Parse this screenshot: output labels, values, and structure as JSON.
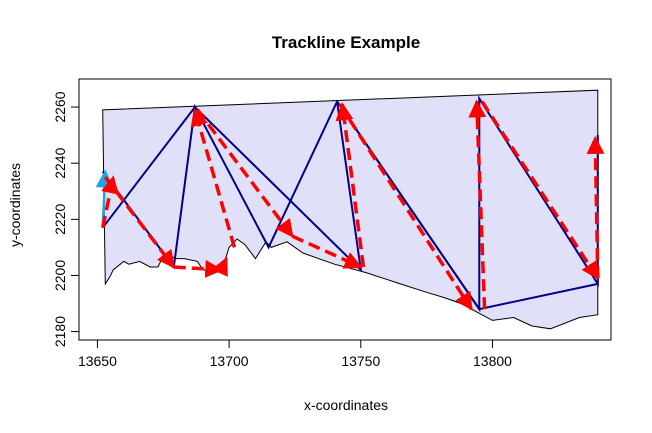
{
  "chart_data": {
    "type": "line",
    "title": "Trackline Example",
    "xlabel": "x-coordinates",
    "ylabel": "y-coordinates",
    "xlim": [
      13643,
      13845
    ],
    "ylim": [
      2177,
      2270
    ],
    "x_ticks": [
      13650,
      13700,
      13750,
      13800
    ],
    "y_ticks": [
      2180,
      2200,
      2220,
      2240,
      2260
    ],
    "grid": false,
    "legend": "none",
    "colors": {
      "polygon_fill": "#e0e0f8",
      "polygon_stroke": "#000000",
      "trackline": "#00008b",
      "arrows": "#ff0000",
      "start_arrow": "#1ea7e6"
    },
    "series": [
      {
        "name": "survey polygon",
        "points": [
          [
            13652,
            2259
          ],
          [
            13840,
            2266
          ],
          [
            13840,
            2186
          ],
          [
            13833,
            2185
          ],
          [
            13822,
            2181
          ],
          [
            13815,
            2182
          ],
          [
            13808,
            2185
          ],
          [
            13800,
            2184
          ],
          [
            13794,
            2187
          ],
          [
            13788,
            2190
          ],
          [
            13782,
            2192
          ],
          [
            13775,
            2194
          ],
          [
            13765,
            2197
          ],
          [
            13752,
            2201
          ],
          [
            13740,
            2204
          ],
          [
            13728,
            2208
          ],
          [
            13722,
            2212
          ],
          [
            13716,
            2210
          ],
          [
            13714,
            2212
          ],
          [
            13712,
            2209
          ],
          [
            13710,
            2206
          ],
          [
            13706,
            2211
          ],
          [
            13703,
            2213
          ],
          [
            13700,
            2210
          ],
          [
            13697,
            2201
          ],
          [
            13690,
            2202
          ],
          [
            13688,
            2205
          ],
          [
            13683,
            2206
          ],
          [
            13680,
            2206
          ],
          [
            13677,
            2207
          ],
          [
            13675,
            2207
          ],
          [
            13673,
            2203
          ],
          [
            13670,
            2203
          ],
          [
            13666,
            2205
          ],
          [
            13662,
            2204
          ],
          [
            13660,
            2205
          ],
          [
            13656,
            2202
          ],
          [
            13655,
            2200
          ],
          [
            13653,
            2197
          ],
          [
            13652,
            2259
          ]
        ]
      },
      {
        "name": "trackline",
        "points": [
          [
            13652,
            2217
          ],
          [
            13687,
            2260
          ],
          [
            13750,
            2202
          ],
          [
            13741,
            2262
          ],
          [
            13795,
            2188
          ],
          [
            13795,
            2263
          ],
          [
            13840,
            2197
          ],
          [
            13840,
            2250
          ]
        ]
      },
      {
        "name": "return legs",
        "points": [
          [
            13652,
            2237
          ],
          [
            13679,
            2203
          ],
          [
            13687,
            2260
          ],
          [
            13715,
            2210
          ],
          [
            13741,
            2262
          ],
          [
            13795,
            2188
          ],
          [
            13840,
            2197
          ]
        ]
      }
    ],
    "arrows": [
      {
        "from": [
          13652,
          2217
        ],
        "to": [
          13653,
          2237
        ],
        "color": "start_arrow",
        "style": "solid"
      },
      {
        "from": [
          13652,
          2217
        ],
        "to": [
          13656,
          2235
        ],
        "color": "arrows",
        "style": "dashed"
      },
      {
        "from": [
          13653,
          2235
        ],
        "to": [
          13679,
          2203
        ],
        "color": "arrows",
        "style": "dashed"
      },
      {
        "from": [
          13679,
          2203
        ],
        "to": [
          13697,
          2202
        ],
        "color": "arrows",
        "style": "dashed"
      },
      {
        "from": [
          13697,
          2202
        ],
        "to": [
          13699,
          2206
        ],
        "color": "arrows",
        "style": "dashed"
      },
      {
        "from": [
          13702,
          2210
        ],
        "to": [
          13687,
          2259
        ],
        "color": "arrows",
        "style": "dashed"
      },
      {
        "from": [
          13688,
          2259
        ],
        "to": [
          13724,
          2214
        ],
        "color": "arrows",
        "style": "dashed"
      },
      {
        "from": [
          13724,
          2214
        ],
        "to": [
          13750,
          2203
        ],
        "color": "arrows",
        "style": "dashed"
      },
      {
        "from": [
          13751,
          2203
        ],
        "to": [
          13743,
          2261
        ],
        "color": "arrows",
        "style": "dashed"
      },
      {
        "from": [
          13742,
          2261
        ],
        "to": [
          13792,
          2188
        ],
        "color": "arrows",
        "style": "dashed"
      },
      {
        "from": [
          13797,
          2188
        ],
        "to": [
          13794,
          2262
        ],
        "color": "arrows",
        "style": "dashed"
      },
      {
        "from": [
          13796,
          2262
        ],
        "to": [
          13840,
          2199
        ],
        "color": "arrows",
        "style": "dashed"
      },
      {
        "from": [
          13840,
          2199
        ],
        "to": [
          13839,
          2249
        ],
        "color": "arrows",
        "style": "dashed"
      }
    ]
  }
}
